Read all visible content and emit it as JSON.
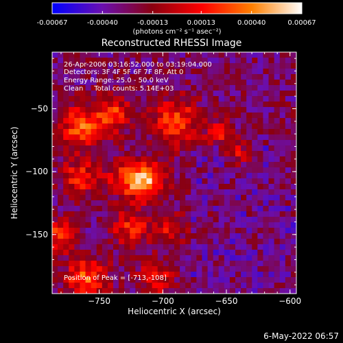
{
  "colorbar": {
    "ticks": [
      -0.00067,
      -0.0004,
      -0.00013,
      0.00013,
      0.0004,
      0.00067
    ],
    "tick_labels": [
      "-0.00067",
      "-0.00040",
      "-0.00013",
      "0.00013",
      "0.00040",
      "0.00067"
    ],
    "unit_label": "(photons cm⁻² s⁻¹ asec⁻²)",
    "colors": [
      "#0000ff",
      "#6a0fb0",
      "#8a0010",
      "#ff0000",
      "#ff8000",
      "#ffffff"
    ]
  },
  "chart_data": {
    "type": "heatmap",
    "title": "Reconstructed RHESSI Image",
    "xlabel": "Heliocentric X (arcsec)",
    "ylabel": "Heliocentric Y (arcsec)",
    "xlim": [
      -787,
      -595
    ],
    "ylim": [
      -197,
      -5
    ],
    "xticks": [
      -750,
      -700,
      -650,
      -600
    ],
    "yticks": [
      -50,
      -100,
      -150
    ],
    "xtick_labels": [
      "−750",
      "−700",
      "−650",
      "−600"
    ],
    "ytick_labels": [
      "−50",
      "−100",
      "−150"
    ],
    "grid": false,
    "value_range": [
      -0.00067,
      0.00067
    ],
    "peak_position": [
      -713,
      -108
    ],
    "info_lines": [
      "26-Apr-2006 03:16:52.000 to 03:19:04.000",
      "Detectors: 3F 4F 5F 6F 7F 8F, Att 0",
      "Energy Range: 25.0 - 50.0 keV",
      "Clean     Total counts: 5.14E+03"
    ],
    "peak_label": "Position of Peak = [-713,-108]"
  },
  "footer": {
    "date": "6-May-2022 06:57"
  }
}
